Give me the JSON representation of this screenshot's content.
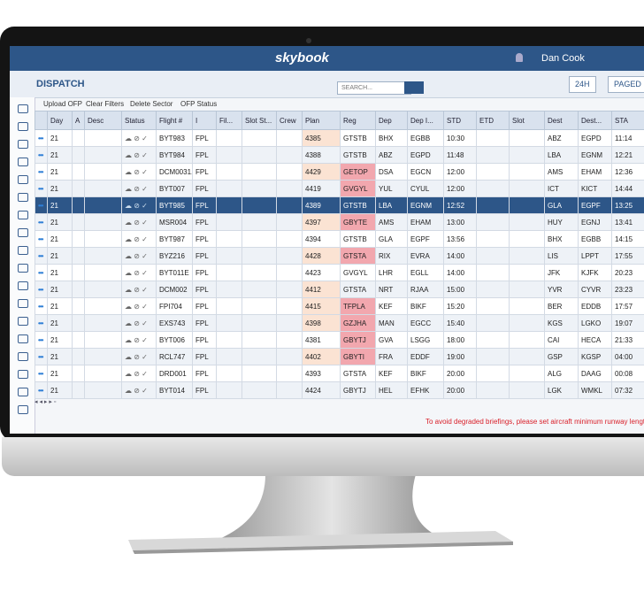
{
  "header": {
    "logo": "skybook",
    "user": "Dan Cook"
  },
  "toolbar": {
    "title": "DISPATCH",
    "view_buttons": [
      "24H",
      "PAGED"
    ],
    "actions": [
      "Upload OFP",
      "Clear Filters",
      "Delete Sector",
      "OFP Status"
    ],
    "search_placeholder": "SEARCH..."
  },
  "table": {
    "columns": [
      "Day",
      "A",
      "Desc",
      "Status",
      "Flight #",
      "I",
      "Fil...",
      "Slot St...",
      "Crew",
      "Plan",
      "Reg",
      "Dep",
      "Dep I...",
      "STD",
      "ETD",
      "Slot",
      "Dest",
      "Dest...",
      "STA"
    ],
    "rows": [
      {
        "day": 21,
        "flight": "BYT983",
        "filing": "FPL",
        "plan": 4385,
        "reg": "GTSTB",
        "dep": "BHX",
        "dep_icao": "EGBB",
        "std": "10:30",
        "dest": "ABZ",
        "dest_icao": "EGPD",
        "sta": "11:14",
        "plan_alert": true
      },
      {
        "day": 21,
        "flight": "BYT984",
        "filing": "FPL",
        "plan": 4388,
        "reg": "GTSTB",
        "dep": "ABZ",
        "dep_icao": "EGPD",
        "std": "11:48",
        "dest": "LBA",
        "dest_icao": "EGNM",
        "sta": "12:21"
      },
      {
        "day": 21,
        "flight": "DCM0031...",
        "filing": "FPL",
        "plan": 4429,
        "reg": "GETOP",
        "dep": "DSA",
        "dep_icao": "EGCN",
        "std": "12:00",
        "dest": "AMS",
        "dest_icao": "EHAM",
        "sta": "12:36",
        "plan_alert": true,
        "reg_alert": true
      },
      {
        "day": 21,
        "flight": "BYT007",
        "filing": "FPL",
        "plan": 4419,
        "reg": "GVGYL",
        "dep": "YUL",
        "dep_icao": "CYUL",
        "std": "12:00",
        "dest": "ICT",
        "dest_icao": "KICT",
        "sta": "14:44",
        "reg_alert": true
      },
      {
        "day": 21,
        "flight": "BYT985",
        "filing": "FPL",
        "plan": 4389,
        "reg": "GTSTB",
        "dep": "LBA",
        "dep_icao": "EGNM",
        "std": "12:52",
        "dest": "GLA",
        "dest_icao": "EGPF",
        "sta": "13:25",
        "selected": true
      },
      {
        "day": 21,
        "flight": "MSR004",
        "filing": "FPL",
        "plan": 4397,
        "reg": "GBYTE",
        "dep": "AMS",
        "dep_icao": "EHAM",
        "std": "13:00",
        "dest": "HUY",
        "dest_icao": "EGNJ",
        "sta": "13:41",
        "plan_alert": true,
        "reg_alert": true
      },
      {
        "day": 21,
        "flight": "BYT987",
        "filing": "FPL",
        "plan": 4394,
        "reg": "GTSTB",
        "dep": "GLA",
        "dep_icao": "EGPF",
        "std": "13:56",
        "dest": "BHX",
        "dest_icao": "EGBB",
        "sta": "14:15"
      },
      {
        "day": 21,
        "flight": "BYZ216",
        "filing": "FPL",
        "plan": 4428,
        "reg": "GTSTA",
        "dep": "RIX",
        "dep_icao": "EVRA",
        "std": "14:00",
        "dest": "LIS",
        "dest_icao": "LPPT",
        "sta": "17:55",
        "plan_alert": true,
        "reg_alert": true
      },
      {
        "day": 21,
        "flight": "BYT011E",
        "filing": "FPL",
        "plan": 4423,
        "reg": "GVGYL",
        "dep": "LHR",
        "dep_icao": "EGLL",
        "std": "14:00",
        "dest": "JFK",
        "dest_icao": "KJFK",
        "sta": "20:23"
      },
      {
        "day": 21,
        "flight": "DCM002",
        "filing": "FPL",
        "plan": 4412,
        "reg": "GTSTA",
        "dep": "NRT",
        "dep_icao": "RJAA",
        "std": "15:00",
        "dest": "YVR",
        "dest_icao": "CYVR",
        "sta": "23:23",
        "plan_alert": true
      },
      {
        "day": 21,
        "flight": "FPI704",
        "filing": "FPL",
        "plan": 4415,
        "reg": "TFPLA",
        "dep": "KEF",
        "dep_icao": "BIKF",
        "std": "15:20",
        "dest": "BER",
        "dest_icao": "EDDB",
        "sta": "17:57",
        "plan_alert": true,
        "reg_alert": true
      },
      {
        "day": 21,
        "flight": "EXS743",
        "filing": "FPL",
        "plan": 4398,
        "reg": "GZJHA",
        "dep": "MAN",
        "dep_icao": "EGCC",
        "std": "15:40",
        "dest": "KGS",
        "dest_icao": "LGKO",
        "sta": "19:07",
        "plan_alert": true,
        "reg_alert": true
      },
      {
        "day": 21,
        "flight": "BYT006",
        "filing": "FPL",
        "plan": 4381,
        "reg": "GBYTJ",
        "dep": "GVA",
        "dep_icao": "LSGG",
        "std": "18:00",
        "dest": "CAI",
        "dest_icao": "HECA",
        "sta": "21:33",
        "reg_alert": true
      },
      {
        "day": 21,
        "flight": "RCL747",
        "filing": "FPL",
        "plan": 4402,
        "reg": "GBYTI",
        "dep": "FRA",
        "dep_icao": "EDDF",
        "std": "19:00",
        "dest": "GSP",
        "dest_icao": "KGSP",
        "sta": "04:00",
        "plan_alert": true,
        "reg_alert": true
      },
      {
        "day": 21,
        "flight": "DRD001",
        "filing": "FPL",
        "plan": 4393,
        "reg": "GTSTA",
        "dep": "KEF",
        "dep_icao": "BIKF",
        "std": "20:00",
        "dest": "ALG",
        "dest_icao": "DAAG",
        "sta": "00:08"
      },
      {
        "day": 21,
        "flight": "BYT014",
        "filing": "FPL",
        "plan": 4424,
        "reg": "GBYTJ",
        "dep": "HEL",
        "dep_icao": "EFHK",
        "std": "20:00",
        "dest": "LGK",
        "dest_icao": "WMKL",
        "sta": "07:32"
      }
    ]
  },
  "warning": "To avoid degraded briefings, please set aircraft minimum runway lengths."
}
